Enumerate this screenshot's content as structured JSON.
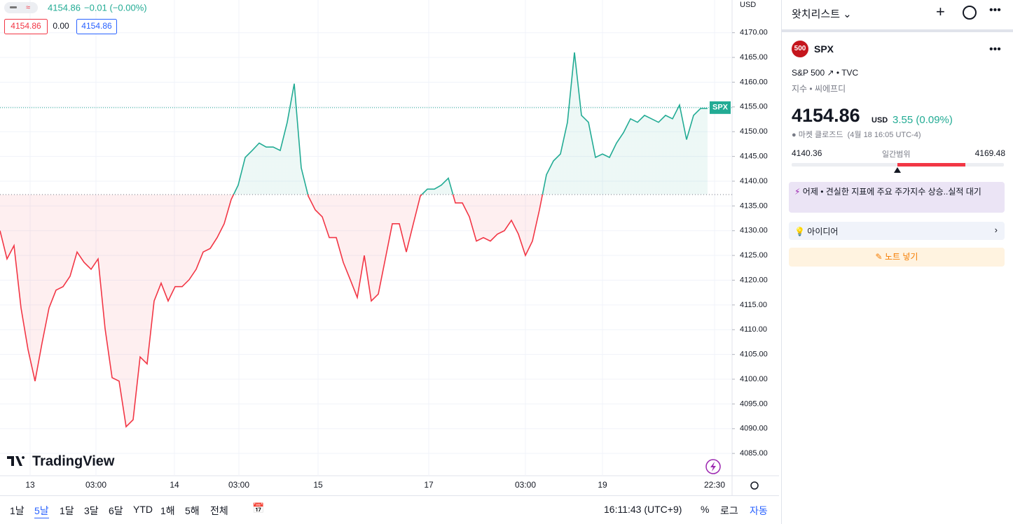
{
  "legend": {
    "price": "4154.86",
    "change": "−0.01 (−0.00%)",
    "box_close": "4154.86",
    "box_spread": "0.00",
    "box_open": "4154.86"
  },
  "chart_data": {
    "type": "line",
    "currency": "USD",
    "symbol_tag": "SPX",
    "watermark": "TradingView",
    "x": [
      0,
      1,
      2,
      3,
      4,
      5,
      6,
      7,
      8,
      9,
      10,
      11,
      12,
      13,
      14,
      15,
      16,
      17,
      18,
      19,
      20,
      21,
      22,
      23,
      24,
      25,
      26,
      27,
      28,
      29,
      30,
      31,
      32,
      33,
      34,
      35,
      36,
      37,
      38,
      39,
      40,
      41,
      42,
      43,
      44,
      45,
      46,
      47,
      48,
      49,
      50,
      51,
      52,
      53,
      54,
      55,
      56,
      57,
      58,
      59,
      60,
      61,
      62,
      63,
      64,
      65,
      66,
      67,
      68,
      69,
      70,
      71,
      72,
      73,
      74,
      75,
      76,
      77,
      78,
      79,
      80,
      81,
      82,
      83,
      84,
      85,
      86,
      87,
      88,
      89,
      90,
      91,
      92,
      93,
      94,
      95,
      96,
      97,
      98,
      99,
      100,
      101
    ],
    "values": [
      4130,
      4124.3,
      4127,
      4114.4,
      4106,
      4099.6,
      4107.3,
      4114.4,
      4118,
      4118.7,
      4120.8,
      4125.7,
      4123.6,
      4122.2,
      4124.3,
      4110.2,
      4100.3,
      4099.6,
      4090.4,
      4091.8,
      4104.5,
      4103.1,
      4115.8,
      4119.4,
      4115.8,
      4118.7,
      4118.7,
      4120.1,
      4122.2,
      4125.7,
      4126.4,
      4128.6,
      4131.4,
      4136.3,
      4139.2,
      4144.8,
      4146.2,
      4147.7,
      4146.9,
      4146.9,
      4146.2,
      4151.9,
      4159.7,
      4142.7,
      4137,
      4134.2,
      4132.8,
      4128.6,
      4128.6,
      4123.6,
      4120.1,
      4116.5,
      4125,
      4115.8,
      4117.2,
      4124.3,
      4131.4,
      4131.4,
      4125.7,
      4131.4,
      4137,
      4138.4,
      4138.4,
      4139.2,
      4140.6,
      4135.6,
      4135.6,
      4132.8,
      4127.9,
      4128.6,
      4127.9,
      4129.3,
      4130,
      4132.1,
      4129.3,
      4125,
      4127.9,
      4134.2,
      4141.3,
      4144.1,
      4145.5,
      4151.9,
      4166,
      4153.3,
      4151.9,
      4144.8,
      4145.5,
      4144.8,
      4147.7,
      4149.8,
      4152.6,
      4151.9,
      4153.3,
      4152.6,
      4151.9,
      4153.3,
      4152.6,
      4155.4,
      4148.4,
      4153.3,
      4154.7,
      4154.7
    ],
    "baseline": 4137.3,
    "last": 4154.86,
    "xlim": [
      0,
      104.5
    ],
    "xticks": [
      {
        "value": 4.3,
        "label": "13"
      },
      {
        "value": 13.7,
        "label": "03:00"
      },
      {
        "value": 24.9,
        "label": "14"
      },
      {
        "value": 34.1,
        "label": "03:00"
      },
      {
        "value": 45.4,
        "label": "15"
      },
      {
        "value": 61.2,
        "label": "17"
      },
      {
        "value": 75,
        "label": "03:00"
      },
      {
        "value": 86,
        "label": "19"
      },
      {
        "value": 102,
        "label": "22:30"
      }
    ],
    "ylim": [
      4080.5,
      4176.6
    ],
    "yticks": [
      {
        "value": 4085,
        "label": "4085.00"
      },
      {
        "value": 4090,
        "label": "4090.00"
      },
      {
        "value": 4095,
        "label": "4095.00"
      },
      {
        "value": 4100,
        "label": "4100.00"
      },
      {
        "value": 4105,
        "label": "4105.00"
      },
      {
        "value": 4110,
        "label": "4110.00"
      },
      {
        "value": 4115,
        "label": "4115.00"
      },
      {
        "value": 4120,
        "label": "4120.00"
      },
      {
        "value": 4125,
        "label": "4125.00"
      },
      {
        "value": 4130,
        "label": "4130.00"
      },
      {
        "value": 4135,
        "label": "4135.00"
      },
      {
        "value": 4140,
        "label": "4140.00"
      },
      {
        "value": 4145,
        "label": "4145.00"
      },
      {
        "value": 4150,
        "label": "4150.00"
      },
      {
        "value": 4155,
        "label": "4155.00"
      },
      {
        "value": 4160,
        "label": "4160.00"
      },
      {
        "value": 4165,
        "label": "4165.00"
      },
      {
        "value": 4170,
        "label": "4170.00"
      }
    ],
    "grid": true,
    "colors": {
      "up": "#22ab94",
      "down": "#f23645"
    }
  },
  "toolbar": {
    "ranges": [
      "1날",
      "5날",
      "1달",
      "3달",
      "6달",
      "YTD",
      "1해",
      "5해",
      "전체"
    ],
    "clock": "16:11:43 (UTC+9)",
    "percent": "%",
    "log": "로그",
    "auto": "자동"
  },
  "panel": {
    "title": "왓치리스트",
    "logo": "500",
    "symbol": "SPX",
    "name": "S&P 500",
    "exchange": "TVC",
    "kind": "지수",
    "kind2": "씨에프디",
    "price": "4154.86",
    "currency": "USD",
    "change": "3.55 (0.09%)",
    "status": "마켓 클로즈드",
    "status_time": "(4월 18 16:05 UTC-4)",
    "range_low": 4140.36,
    "range_label": "일간범위",
    "range_high": 4169.48,
    "range_price": 4154.86,
    "news_when": "어제",
    "news": "견실한 지표에 주요 주가지수 상승..실적 대기",
    "ideas": "아이디어",
    "note": "노트 넣기"
  }
}
